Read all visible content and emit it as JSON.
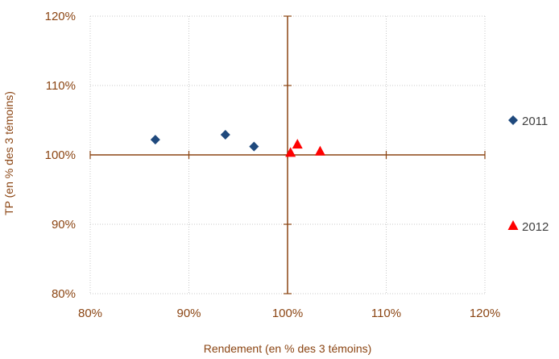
{
  "chart_data": {
    "type": "scatter",
    "xlabel": "Rendement  (en % des 3 témoins)",
    "ylabel": "TP (en % des 3 témoins)",
    "xlim": [
      0.8,
      1.2
    ],
    "ylim": [
      0.8,
      1.2
    ],
    "x_ticks": [
      "80%",
      "90%",
      "100%",
      "110%",
      "120%"
    ],
    "y_ticks": [
      "80%",
      "90%",
      "100%",
      "110%",
      "120%"
    ],
    "grid": true,
    "legend_position": "right",
    "series": [
      {
        "name": "2011",
        "marker": "diamond",
        "color": "#1F497D",
        "points": [
          [
            0.866,
            1.022
          ],
          [
            0.937,
            1.029
          ],
          [
            0.966,
            1.012
          ]
        ]
      },
      {
        "name": "2012",
        "marker": "triangle",
        "color": "#FF0000",
        "points": [
          [
            1.003,
            1.003
          ],
          [
            1.01,
            1.015
          ],
          [
            1.033,
            1.005
          ]
        ]
      }
    ]
  }
}
